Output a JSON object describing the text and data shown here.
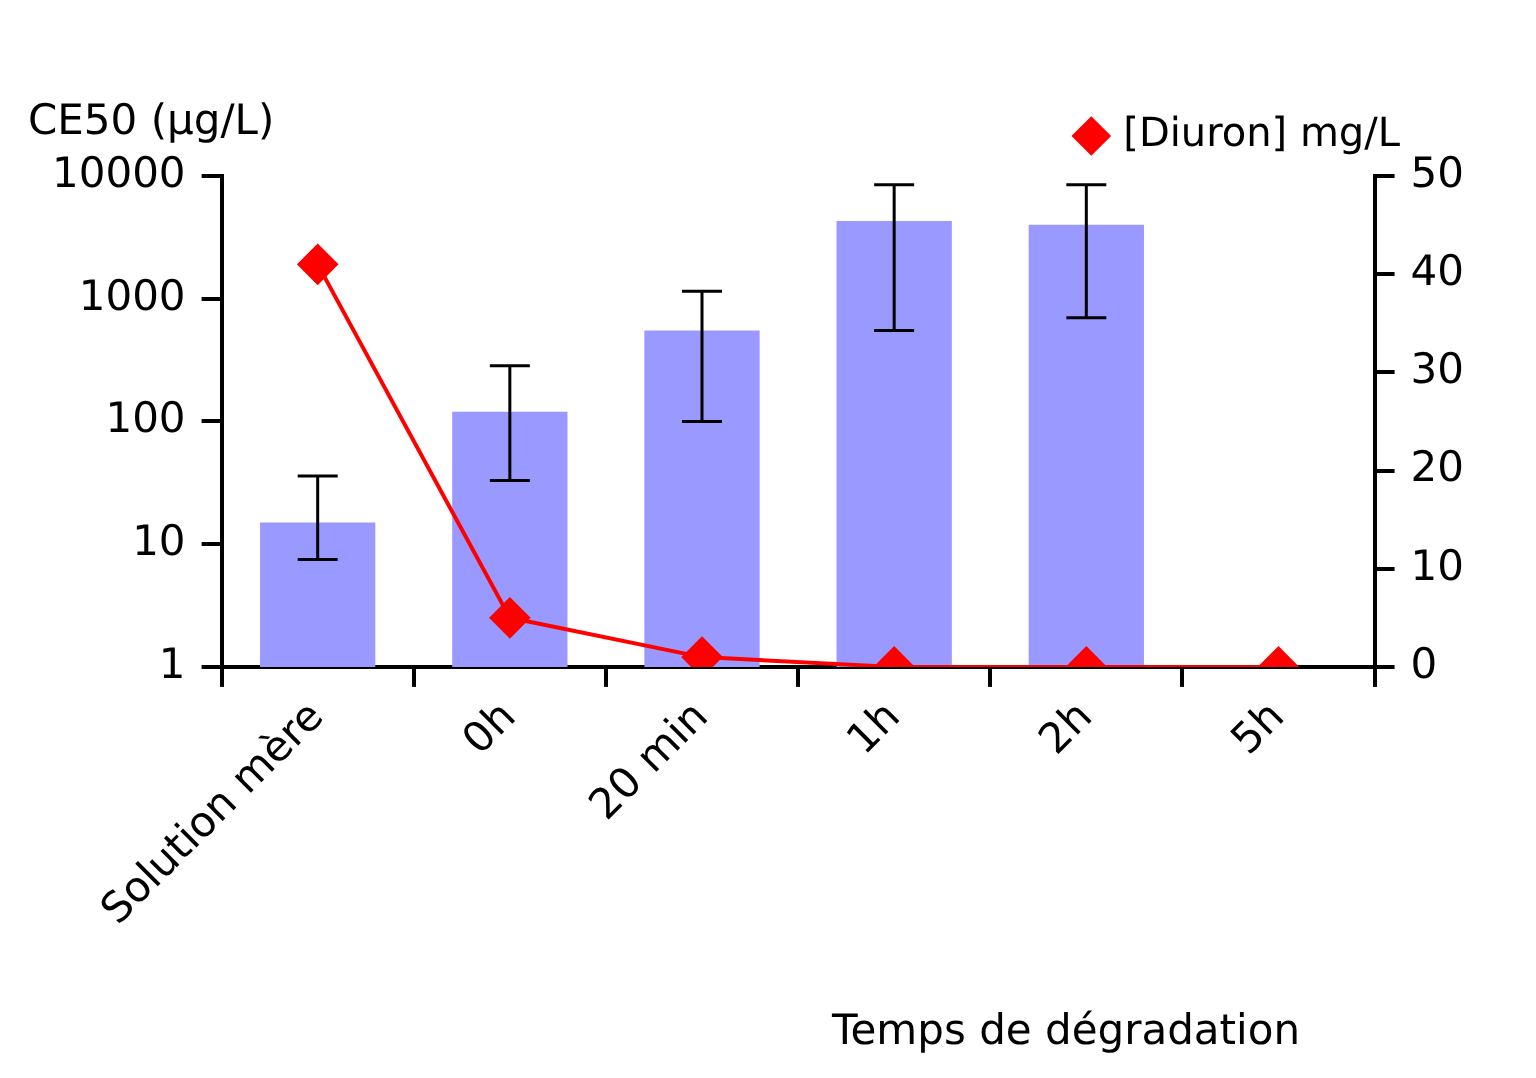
{
  "chart_data": {
    "type": "bar",
    "xlabel": "Temps de dégradation",
    "ylabel": "CE50 (µg/L)",
    "categories": [
      "Solution mère",
      "0h",
      "20 min",
      "1h",
      "2h",
      "5h"
    ],
    "log": "y",
    "ylim": [
      1,
      10000
    ],
    "yticks": [
      1,
      10,
      100,
      1000,
      10000
    ],
    "y2lim": [
      0,
      50
    ],
    "y2ticks": [
      0,
      10,
      20,
      30,
      40,
      50
    ],
    "grid": false,
    "legend": "top right",
    "series": [
      {
        "color": "#9999ff",
        "values": [
          15,
          120,
          550,
          4300,
          4000,
          null
        ],
        "errors": [
          [
            7.5,
            36
          ],
          [
            33,
            285
          ],
          [
            100,
            1150
          ],
          [
            550,
            8500
          ],
          [
            700,
            8500
          ],
          null
        ]
      },
      {
        "type": "line",
        "name": "[Diuron] mg/L",
        "axis": "y2",
        "color": "#ff0000",
        "marker": "diamond",
        "values": [
          41,
          5,
          1,
          0,
          0,
          0
        ]
      }
    ]
  }
}
